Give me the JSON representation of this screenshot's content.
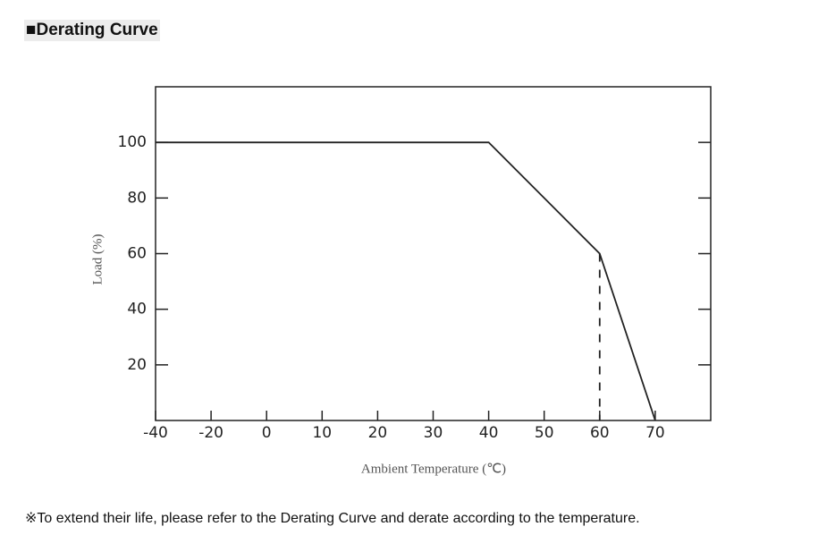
{
  "header": {
    "title": "■Derating Curve"
  },
  "chart_data": {
    "type": "line",
    "x": [
      -40,
      40,
      60,
      70
    ],
    "values": [
      100,
      100,
      60,
      0
    ],
    "color": "#222222",
    "xlim": [
      -40,
      80
    ],
    "xticks": [
      -40,
      -20,
      0,
      10,
      20,
      30,
      40,
      50,
      60,
      70
    ],
    "ylim": [
      0,
      120
    ],
    "yticks": [
      20,
      40,
      60,
      80,
      100
    ],
    "x_label": "Ambient Temperature (℃)",
    "y_label": "Load (%)"
  },
  "footer": {
    "note": "※To extend their life, please refer to the Derating Curve and derate according to the temperature."
  }
}
